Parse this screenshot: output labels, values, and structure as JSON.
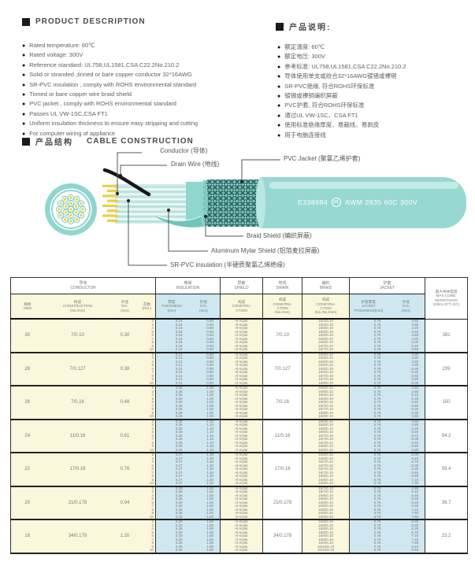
{
  "product_description": {
    "heading": "PRODUCT DESCRIPTION",
    "items": [
      "Rated temperature: 60℃",
      "Rated voltage: 300V",
      "Reference standard: UL758,UL1581,CSA C22.2No.210.2",
      "Solid or stranded ,tinned or bare copper conductor 32*16AWG",
      "SR-PVC insulation , comply with ROHS environmental standard",
      "Tinned or bare copper wire braid shield",
      "PVC jacket , comply with ROHS environmental standard",
      "Passes UL VW-1SC,CSA FT1",
      "Uniform insulation thickness to ensure easy stripping and cutting",
      "For computer wiring of appliance"
    ]
  },
  "product_description_cn": {
    "heading": "产品说明:",
    "items": [
      "额定温度: 60℃",
      "额定电压: 300V",
      "参考标准: UL758,UL1581,CSA C22.2No.210.2",
      "导体使用单支或绞合32*16AWG镀锡或裸铜",
      "SR-PVC绝缘, 符合ROHS环保标准",
      "镀锡或裸铜编织屏蔽",
      "PVC护套, 符合ROHS环保标准",
      "通过UL VW-1SC、CSA FT1",
      "使用标准绝缘厚度、易裁线、易剥皮",
      "用于电脑连接线"
    ]
  },
  "construction": {
    "heading_cn": "产品结构",
    "heading_en": "CABLE CONSTRUCTION",
    "labels": {
      "conductor": "Conductor (导体)",
      "drain": "Drain Wire (地线)",
      "jacket": "PVC Jacket (聚氯乙烯护套)",
      "braid": "Braid Shield (编织屏蔽)",
      "mylar": "Aluminum Mylar Shield (铝箔麦拉屏蔽)",
      "insulation": "SR-PVC insulation (半硬质聚氯乙烯绝缘)"
    },
    "print_left": "E338684",
    "print_right": "AWM 2835 60C 300V",
    "ul_mark": "UL"
  },
  "colors": {
    "teal": "#8fd6cf",
    "teal_light": "#c8eee9",
    "teal_dark": "#5bbcb2",
    "braid_dark": "#2e5f5a",
    "conductor_yellow": "#f0d23e",
    "cell_yellow": "#fbf7dd",
    "cell_blue": "#cfe7f0",
    "line_gray": "#555555"
  },
  "table": {
    "groups": [
      {
        "cn": "导体",
        "en": "CONDUCTOR",
        "span": 4
      },
      {
        "cn": "绝缘",
        "en": "INSULATION",
        "span": 2
      },
      {
        "cn": "屏蔽",
        "en": "SHIELD",
        "span": 1
      },
      {
        "cn": "地线",
        "en": "DRAIN",
        "span": 1
      },
      {
        "cn": "编织",
        "en": "BRAID",
        "span": 1
      },
      {
        "cn": "护套",
        "en": "JACKET",
        "span": 2
      }
    ],
    "sub_headers": [
      {
        "lines": [
          "规格",
          "AWG"
        ],
        "bg": "y",
        "gb": false
      },
      {
        "lines": [
          "构成",
          "CONSTRUCTION",
          "(No./mm)"
        ],
        "bg": "y",
        "gb": false
      },
      {
        "lines": [
          "外径",
          "DIA.",
          "(mm)"
        ],
        "bg": "y",
        "gb": false
      },
      {
        "lines": [
          "芯数",
          "(NO.)"
        ],
        "bg": "y",
        "gb": false
      },
      {
        "lines": [
          "厚度",
          "THICKNESS",
          "(mm)"
        ],
        "bg": "b",
        "gb": true
      },
      {
        "lines": [
          "外径",
          "O.D.",
          "(mm)"
        ],
        "bg": "b",
        "gb": false
      },
      {
        "lines": [
          "构成",
          "CONSTRU-",
          "CTION"
        ],
        "bg": "y",
        "gb": true
      },
      {
        "lines": [
          "构成",
          "CONSTRU-",
          "CTION",
          "(No./mm)"
        ],
        "bg": "y",
        "gb": true
      },
      {
        "lines": [
          "构成",
          "CONSTRU-",
          "CTION",
          "(No./No./mm)"
        ],
        "bg": "y",
        "gb": true
      },
      {
        "lines": [
          "护套厚度",
          "JACKET",
          "THICKNESS(mm)"
        ],
        "bg": "b",
        "gb": true
      },
      {
        "lines": [
          "外径",
          "O.D.",
          "(mm)"
        ],
        "bg": "b",
        "gb": false
      }
    ],
    "resistance_header": {
      "lines": [
        "最大导体电阻",
        "MAX COND.",
        "RESISTANCE",
        "(Ω/km,20℃,DC)"
      ]
    },
    "shield_value": "Al-mylar",
    "rows": [
      {
        "awg": "30",
        "construction": "7/0.10",
        "dia": "0.30",
        "cores": [
          "2",
          "3",
          "4",
          "5",
          "6",
          "7",
          "8",
          "9",
          "10"
        ],
        "ins_thickness": "0.15",
        "ins_od": "0.60",
        "drain": "7/0.10",
        "braid": [
          "16/4/0.10",
          "16/4/0.10",
          "16/5/0.10",
          "16/5/0.10",
          "16/6/0.10",
          "16/6/0.10",
          "16/6/0.10",
          "16/7/0.10",
          "16/7/0.10"
        ],
        "jacket_thickness": "0.76",
        "jacket_od": [
          "3.60",
          "3.90",
          "4.20",
          "4.40",
          "4.60",
          "4.80",
          "5.00",
          "5.20",
          "5.50"
        ],
        "resistance": "381"
      },
      {
        "awg": "28",
        "construction": "7/0.127",
        "dia": "0.38",
        "cores": [
          "2",
          "3",
          "4",
          "5",
          "6",
          "7",
          "8",
          "9",
          "10"
        ],
        "ins_thickness": "0.21",
        "ins_od": "0.80",
        "drain": "7/0.127",
        "braid": [
          "16/5/0.10",
          "16/5/0.10",
          "16/5/0.10",
          "16/6/0.10",
          "16/6/0.10",
          "16/6/0.10",
          "16/7/0.10",
          "16/7/0.10",
          "16/8/0.10"
        ],
        "jacket_thickness": "0.76",
        "jacket_od": [
          "4.00",
          "4.30",
          "4.60",
          "4.80",
          "5.00",
          "5.30",
          "5.50",
          "5.80",
          "6.00"
        ],
        "resistance": "239"
      },
      {
        "awg": "26",
        "construction": "7/0.16",
        "dia": "0.48",
        "cores": [
          "2",
          "3",
          "4",
          "5",
          "6",
          "7",
          "8",
          "9",
          "10"
        ],
        "ins_thickness": "0.26",
        "ins_od": "1.00",
        "drain": "7/0.16",
        "braid": [
          "16/5/0.10",
          "16/5/0.10",
          "16/6/0.10",
          "16/6/0.10",
          "16/6/0.10",
          "16/7/0.10",
          "16/7/0.10",
          "16/8/0.10",
          "16/8/0.10"
        ],
        "jacket_thickness": "0.76",
        "jacket_od": [
          "4.50",
          "4.80",
          "5.10",
          "5.30",
          "5.60",
          "5.80",
          "6.00",
          "6.30",
          "6.50"
        ],
        "resistance": "150"
      },
      {
        "awg": "24",
        "construction": "11/0.16",
        "dia": "0.61",
        "cores": [
          "2",
          "3",
          "4",
          "5",
          "6",
          "7",
          "8",
          "9",
          "10"
        ],
        "ins_thickness": "0.25",
        "ins_od": "1.10",
        "drain": "11/0.16",
        "braid": [
          "16/5/0.10",
          "16/6/0.10",
          "16/6/0.10",
          "16/6/0.10",
          "16/7/0.10",
          "16/7/0.10",
          "16/7/0.10",
          "16/8/0.10",
          "16/8/0.10"
        ],
        "jacket_thickness": "0.76",
        "jacket_od": [
          "4.60",
          "4.90",
          "5.20",
          "5.50",
          "5.70",
          "6.00",
          "6.20",
          "6.50",
          "6.80"
        ],
        "resistance": "94.2"
      },
      {
        "awg": "22",
        "construction": "17/0.16",
        "dia": "0.76",
        "cores": [
          "2",
          "3",
          "4",
          "5",
          "6",
          "7",
          "8",
          "9",
          "10"
        ],
        "ins_thickness": "0.27",
        "ins_od": "1.30",
        "drain": "17/0.16",
        "braid": [
          "16/6/0.10",
          "16/6/0.10",
          "16/7/0.10",
          "16/7/0.10",
          "16/7/0.10",
          "16/7/0.10",
          "16/8/0.10",
          "16/8/0.10",
          "16/8/0.10"
        ],
        "jacket_thickness": "0.76",
        "jacket_od": [
          "5.00",
          "5.40",
          "5.70",
          "6.00",
          "6.30",
          "6.60",
          "6.90",
          "7.10",
          "7.30"
        ],
        "resistance": "59.4"
      },
      {
        "awg": "20",
        "construction": "21/0.178",
        "dia": "0.94",
        "cores": [
          "2",
          "3",
          "4",
          "5",
          "6",
          "7",
          "8",
          "9",
          "10"
        ],
        "ins_thickness": "0.28",
        "ins_od": "1.50",
        "drain": "21/0.178",
        "braid": [
          "16/7/0.10",
          "16/7/0.10",
          "16/8/0.10",
          "16/8/0.10",
          "16/8/0.10",
          "16/8/0.10",
          "16/8/0.10",
          "16/9/0.10",
          "16/9/0.10"
        ],
        "jacket_thickness": "0.76",
        "jacket_od": [
          "4.90",
          "5.10",
          "5.60",
          "5.90",
          "6.40",
          "6.80",
          "7.10",
          "7.50",
          "7.90"
        ],
        "resistance": "36.7"
      },
      {
        "awg": "18",
        "construction": "34/0.178",
        "dia": "1.20",
        "cores": [
          "2",
          "3",
          "4",
          "5",
          "6",
          "7",
          "8",
          "9",
          "10"
        ],
        "ins_thickness": "0.30",
        "ins_od": "1.80",
        "drain": "34/0.178",
        "braid": [
          "16/8/0.10",
          "16/8/0.10",
          "16/8/0.10",
          "16/8/0.10",
          "16/9/0.10",
          "16/9/0.10",
          "16/9/0.10",
          "16/10/0.10",
          "16/10/0.10"
        ],
        "jacket_thickness": "0.76",
        "jacket_od": [
          "5.30",
          "5.80",
          "6.30",
          "6.70",
          "7.10",
          "7.40",
          "7.80",
          "8.10",
          "8.50"
        ],
        "resistance": "23.2"
      }
    ]
  }
}
